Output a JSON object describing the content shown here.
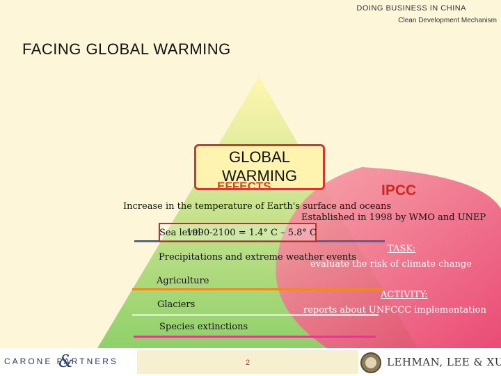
{
  "header": {
    "line1": "DOING BUSINESS IN CHINA",
    "line2": "Clean Development Mechanism"
  },
  "title": "FACING GLOBAL WARMING",
  "center_box": {
    "label": "GLOBAL WARMING",
    "overlay": "EFFECTS"
  },
  "ipcc": {
    "label": "IPCC",
    "established": "Established in 1998 by WMO and UNEP",
    "task_label": "TASK:",
    "task_text": "evaluate the risk of climate change",
    "activity_label": "ACTIVITY:",
    "activity_text": "reports about UNFCCC implementation"
  },
  "effects": {
    "increase": "Increase in the temperature of Earth's surface and oceans",
    "sea_level": "Sea level",
    "projection": "1990-2100 = 1.4° C – 5.8° C",
    "precipitations": "Precipitations and extreme weather events",
    "agriculture": "Agriculture",
    "glaciers": "Glaciers",
    "species": "Species extinctions"
  },
  "colors": {
    "red": "#e03030",
    "blue": "#3a6ab0",
    "orange": "#f08a1c",
    "pink": "#e03a8a"
  },
  "footer": {
    "left_logo": "CARONE PARTNERS",
    "page_number": "2",
    "right_logo": "LEHMAN, LEE & XU"
  }
}
